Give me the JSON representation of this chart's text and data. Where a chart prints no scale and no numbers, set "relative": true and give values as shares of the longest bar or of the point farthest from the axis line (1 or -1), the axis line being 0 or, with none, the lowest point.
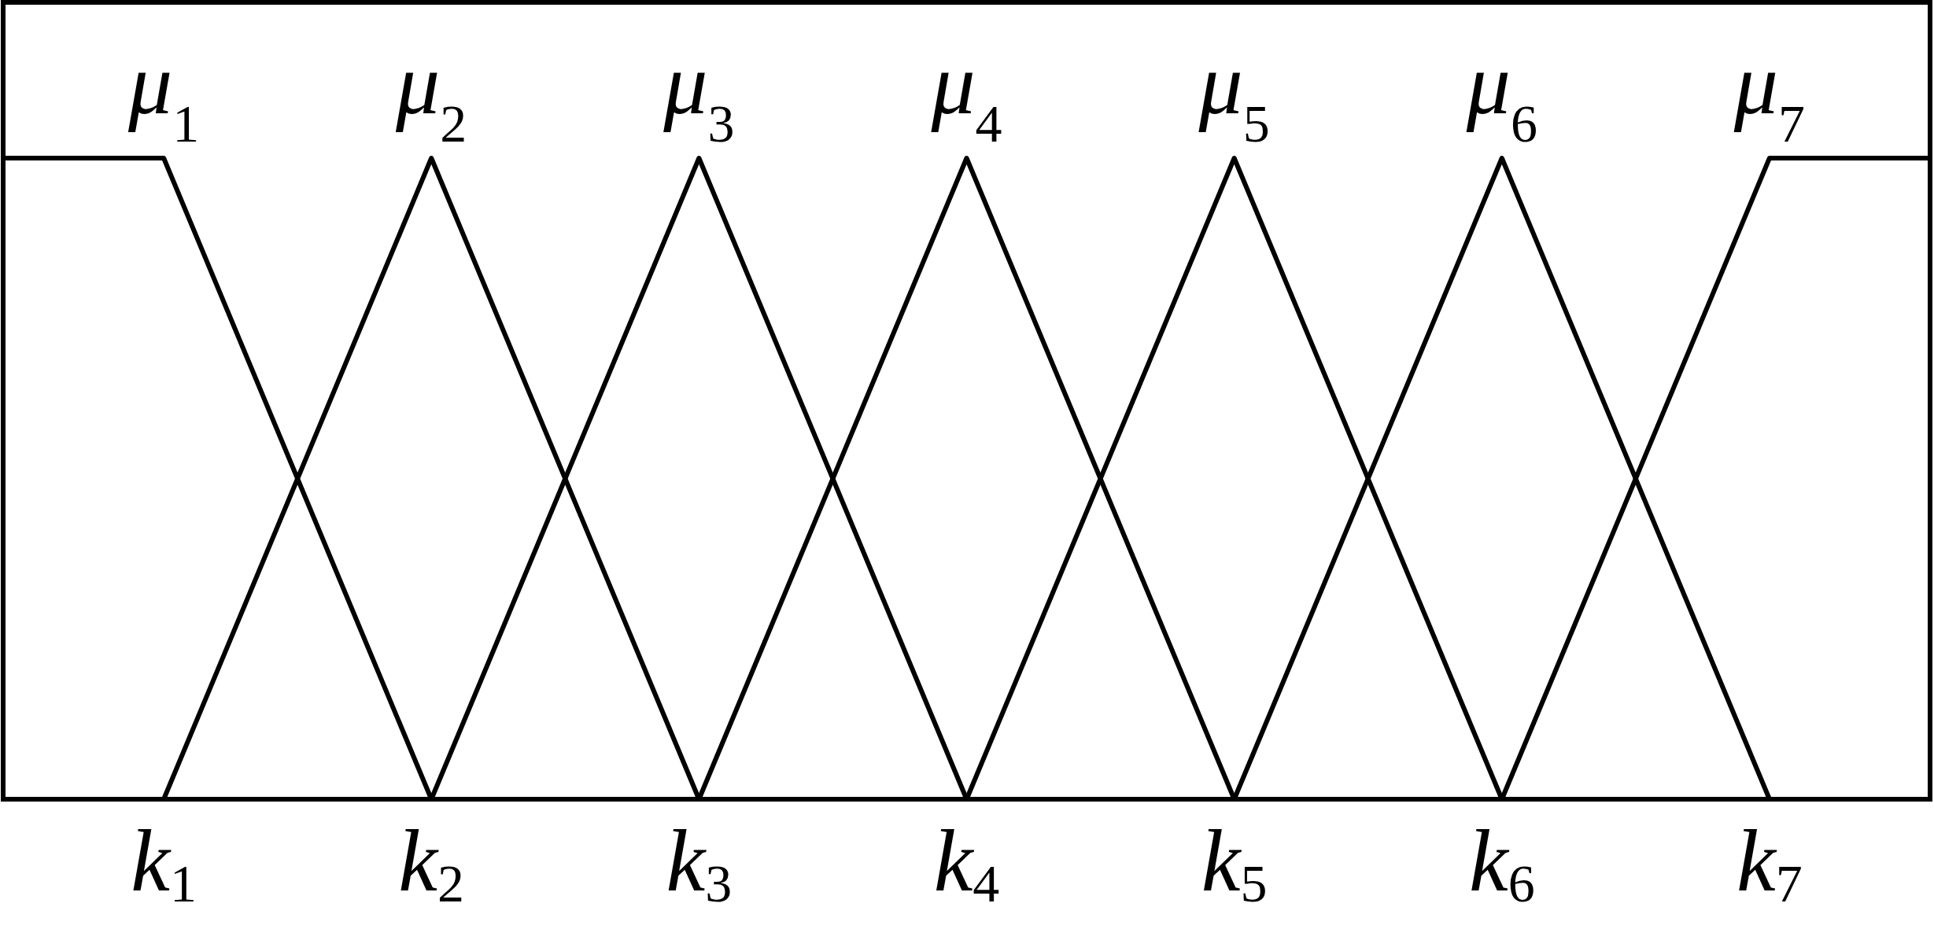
{
  "chart_data": {
    "type": "line",
    "relative": true,
    "xlim": [
      0.4,
      7.6
    ],
    "xticks": [
      {
        "value": 1,
        "label": "k$_{1}$"
      },
      {
        "value": 2,
        "label": "k$_{2}$"
      },
      {
        "value": 3,
        "label": "k$_{3}$"
      },
      {
        "value": 4,
        "label": "k$_{4}$"
      },
      {
        "value": 5,
        "label": "k$_{5}$"
      },
      {
        "value": 6,
        "label": "k$_{6}$"
      },
      {
        "value": 7,
        "label": "k$_{7}$"
      }
    ],
    "series": [
      {
        "name": "μ$_{1}$",
        "color": "#000000",
        "x": [
          0.4,
          1,
          2
        ],
        "values": [
          1,
          1,
          0
        ]
      },
      {
        "name": "μ$_{2}$",
        "color": "#000000",
        "x": [
          1,
          2,
          3
        ],
        "values": [
          0,
          1,
          0
        ]
      },
      {
        "name": "μ$_{3}$",
        "color": "#000000",
        "x": [
          2,
          3,
          4
        ],
        "values": [
          0,
          1,
          0
        ]
      },
      {
        "name": "μ$_{4}$",
        "color": "#000000",
        "x": [
          3,
          4,
          5
        ],
        "values": [
          0,
          1,
          0
        ]
      },
      {
        "name": "μ$_{5}$",
        "color": "#000000",
        "x": [
          4,
          5,
          6
        ],
        "values": [
          0,
          1,
          0
        ]
      },
      {
        "name": "μ$_{6}$",
        "color": "#000000",
        "x": [
          5,
          6,
          7
        ],
        "values": [
          0,
          1,
          0
        ]
      },
      {
        "name": "μ$_{7}$",
        "color": "#000000",
        "x": [
          6,
          7,
          7.6
        ],
        "values": [
          0,
          1,
          1
        ]
      }
    ]
  }
}
